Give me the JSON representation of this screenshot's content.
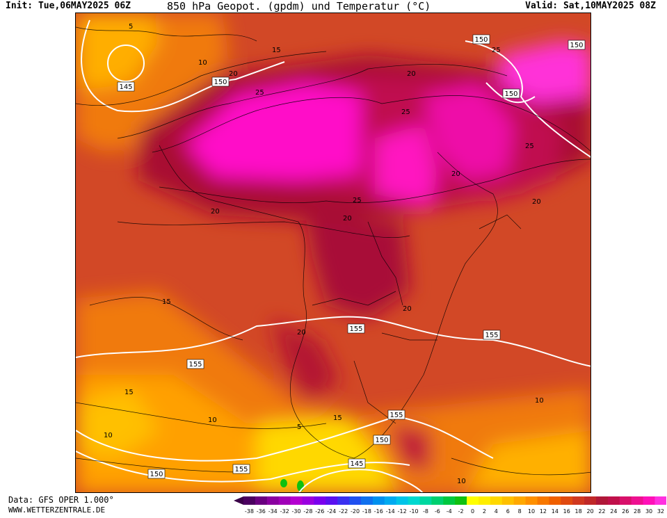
{
  "header": {
    "init": "Init: Tue,06MAY2025 06Z",
    "title": "850 hPa Geopot. (gpdm) und Temperatur (°C)",
    "valid": "Valid: Sat,10MAY2025 08Z"
  },
  "footer": {
    "data_source": "Data: GFS OPER 1.000°",
    "website": "WWW.WETTERZENTRALE.DE"
  },
  "map": {
    "geopotential_labels": [
      "145",
      "150",
      "150",
      "150",
      "150",
      "155",
      "155",
      "155",
      "155",
      "150",
      "155",
      "150",
      "145"
    ],
    "temperature_labels": [
      "5",
      "10",
      "15",
      "20",
      "25",
      "20",
      "25",
      "25",
      "25",
      "20",
      "20",
      "20",
      "25",
      "20",
      "15",
      "20",
      "20",
      "15",
      "10",
      "5",
      "10",
      "15",
      "10",
      "10"
    ]
  },
  "legend": {
    "ticks": [
      "-38",
      "-36",
      "-34",
      "-32",
      "-30",
      "-28",
      "-26",
      "-24",
      "-22",
      "-20",
      "-18",
      "-16",
      "-14",
      "-12",
      "-10",
      "-8",
      "-6",
      "-4",
      "-2",
      "0",
      "2",
      "4",
      "6",
      "8",
      "10",
      "12",
      "14",
      "16",
      "18",
      "20",
      "22",
      "24",
      "26",
      "28",
      "30",
      "32"
    ],
    "colors": [
      "#4b0060",
      "#6a0080",
      "#8a00a0",
      "#a000b8",
      "#b400d0",
      "#9a00e0",
      "#7a00ee",
      "#5a10f0",
      "#3a30f0",
      "#2050f0",
      "#1070ee",
      "#0090ee",
      "#00aaf0",
      "#00c4e8",
      "#00d8d0",
      "#00d8a0",
      "#00d070",
      "#00c840",
      "#10c010",
      "#ffff00",
      "#ffee00",
      "#ffd800",
      "#ffc000",
      "#ffa800",
      "#ff9000",
      "#f87800",
      "#f06000",
      "#e04a10",
      "#d03820",
      "#c02828",
      "#b01838",
      "#c0104a",
      "#d8106a",
      "#ee1090",
      "#ff10b8",
      "#ff30e0"
    ]
  }
}
